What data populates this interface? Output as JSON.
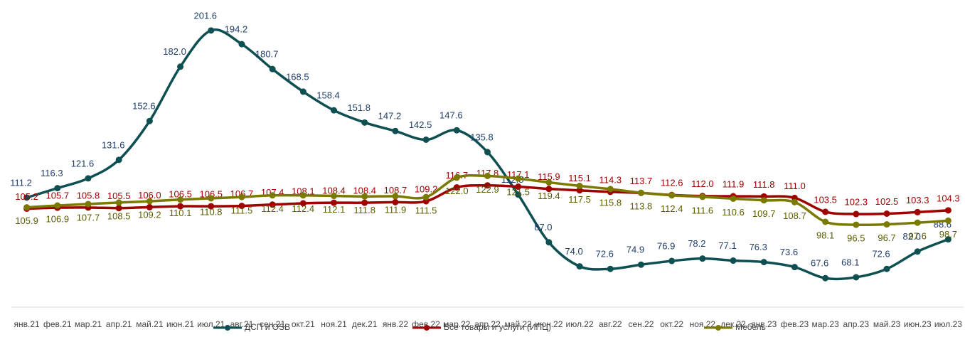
{
  "chart_data": {
    "type": "line",
    "categories": [
      "янв.21",
      "фев.21",
      "мар.21",
      "апр.21",
      "май.21",
      "июн.21",
      "июл.21",
      "авг.21",
      "сен.21",
      "окт.21",
      "ноя.21",
      "дек.21",
      "янв.22",
      "фев.22",
      "мар.22",
      "апр.22",
      "май.22",
      "июн.22",
      "июл.22",
      "авг.22",
      "сен.22",
      "окт.22",
      "ноя.22",
      "дек.22",
      "янв.23",
      "фев.23",
      "мар.23",
      "апр.23",
      "май.23",
      "июн.23",
      "июл.23"
    ],
    "series": [
      {
        "name": "ДСП и OSB",
        "color": "#0e4f52",
        "label_color": "#1f3d6b",
        "values": [
          111.2,
          116.3,
          121.6,
          131.6,
          152.6,
          182.0,
          201.6,
          194.2,
          180.7,
          168.5,
          158.4,
          151.8,
          147.2,
          142.5,
          147.6,
          135.8,
          112.8,
          87.0,
          74.0,
          72.6,
          74.9,
          76.9,
          78.2,
          77.1,
          76.3,
          73.6,
          67.6,
          68.1,
          72.6,
          82.0,
          88.6
        ],
        "value_labels": [
          "111.2",
          "116.3",
          "121.6",
          "131.6",
          "152.6",
          "182.0",
          "201.6",
          "194.2",
          "180.7",
          "168.5",
          "158.4",
          "151.8",
          "147.2",
          "142.5",
          "147.6",
          "135.8",
          "112.8",
          "87.0",
          "74.0",
          "72.6",
          "74.9",
          "76.9",
          "78.2",
          "77.1",
          "76.3",
          "73.6",
          "67.6",
          "68.1",
          "72.6",
          "82.0",
          "88.6"
        ]
      },
      {
        "name": "Все товары и услуги (ИПЦ)",
        "color": "#a00000",
        "label_color": "#a00000",
        "values": [
          105.2,
          105.7,
          105.8,
          105.5,
          106.0,
          106.5,
          106.5,
          106.7,
          107.4,
          108.1,
          108.4,
          108.4,
          108.7,
          109.2,
          116.7,
          117.8,
          117.1,
          115.9,
          115.1,
          114.3,
          113.7,
          112.6,
          112.0,
          111.9,
          111.8,
          111.0,
          103.5,
          102.3,
          102.5,
          103.3,
          104.3
        ],
        "value_labels": [
          "105.2",
          "105.7",
          "105.8",
          "105.5",
          "106.0",
          "106.5",
          "106.5",
          "106.7",
          "107.4",
          "108.1",
          "108.4",
          "108.4",
          "108.7",
          "109.2",
          "116.7",
          "117.8",
          "117.1",
          "115.9",
          "115.1",
          "114.3",
          "113.7",
          "112.6",
          "112.0",
          "111.9",
          "111.8",
          "111.0",
          "103.5",
          "102.3",
          "102.5",
          "103.3",
          "104.3"
        ]
      },
      {
        "name": "Мебель",
        "color": "#7a7a00",
        "label_color": "#5c5c00",
        "values": [
          105.9,
          106.9,
          107.7,
          108.5,
          109.2,
          110.1,
          110.8,
          111.5,
          112.4,
          112.4,
          112.1,
          111.8,
          111.9,
          111.5,
          122.0,
          122.9,
          121.5,
          119.4,
          117.5,
          115.8,
          113.8,
          112.4,
          111.6,
          110.6,
          109.7,
          108.7,
          98.1,
          96.5,
          96.7,
          97.6,
          98.7
        ],
        "value_labels": [
          "105.9",
          "106.9",
          "107.7",
          "108.5",
          "109.2",
          "110.1",
          "110.8",
          "111.5",
          "112.4",
          "112.4",
          "112.1",
          "111.8",
          "111.9",
          "111.5",
          "122.0",
          "122.9",
          "121.5",
          "119.4",
          "117.5",
          "115.8",
          "113.8",
          "112.4",
          "111.6",
          "110.6",
          "109.7",
          "108.7",
          "98.1",
          "96.5",
          "96.7",
          "97.6",
          "98.7"
        ]
      }
    ],
    "ylim": [
      50,
      210
    ]
  }
}
